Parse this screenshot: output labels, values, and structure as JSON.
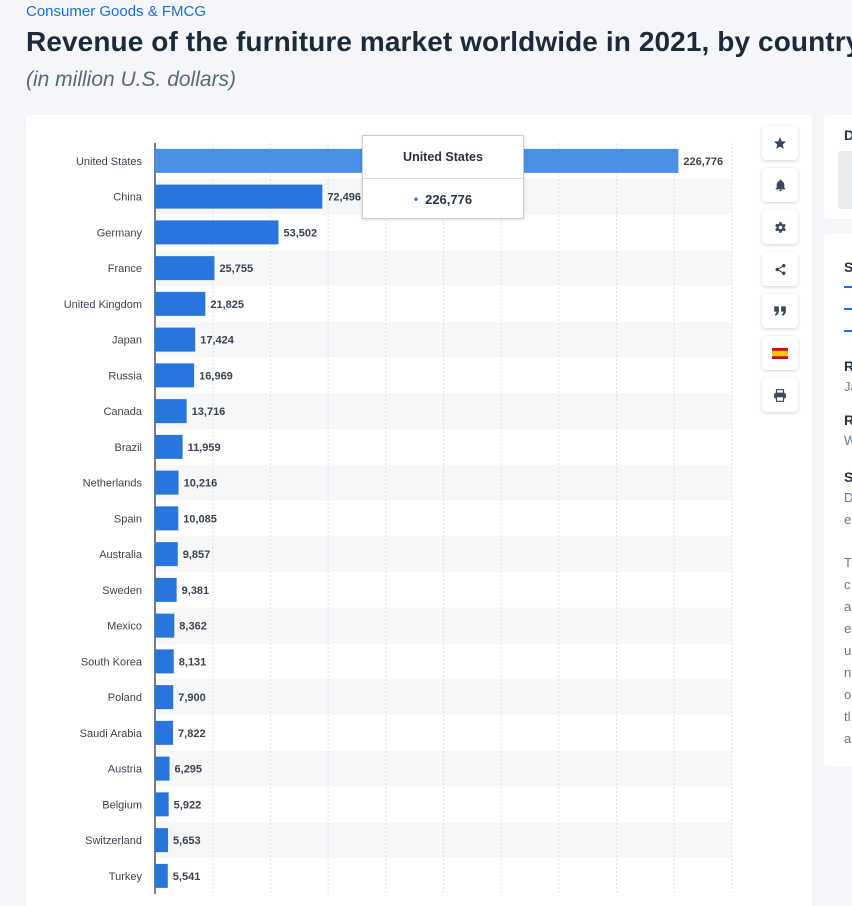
{
  "header": {
    "breadcrumb": "Consumer Goods & FMCG",
    "title": "Revenue of the furniture market worldwide in 2021, by country",
    "subtitle": "(in million U.S. dollars)"
  },
  "tooltip": {
    "country": "United States",
    "value": "226,776"
  },
  "toolbar": {
    "buttons": [
      {
        "name": "favorite-button",
        "icon": "star-icon"
      },
      {
        "name": "notification-button",
        "icon": "bell-icon"
      },
      {
        "name": "settings-button",
        "icon": "gear-icon"
      },
      {
        "name": "share-button",
        "icon": "share-icon"
      },
      {
        "name": "cite-button",
        "icon": "quote-icon"
      },
      {
        "name": "language-button",
        "icon": "spain-flag-icon"
      },
      {
        "name": "print-button",
        "icon": "printer-icon"
      }
    ]
  },
  "side_panel": {
    "card1_char": "D",
    "card2_chars": [
      "S",
      "R",
      "Ja",
      "R",
      "W",
      "S",
      "D",
      "e",
      "T",
      "c",
      "a",
      "e",
      "u",
      "n",
      "o",
      "tl",
      "a"
    ]
  },
  "colors": {
    "bar": "#2876dd",
    "bar_highlight": "#4a90e8",
    "stripe": "#f6f7f9",
    "grid": "#dde1e6",
    "axis": "#1c2a3a",
    "label": "#3a4450"
  },
  "chart_data": {
    "type": "bar",
    "orientation": "horizontal",
    "title": "Revenue of the furniture market worldwide in 2021, by country",
    "subtitle": "(in million U.S. dollars)",
    "categories": [
      "United States",
      "China",
      "Germany",
      "France",
      "United Kingdom",
      "Japan",
      "Russia",
      "Canada",
      "Brazil",
      "Netherlands",
      "Spain",
      "Australia",
      "Sweden",
      "Mexico",
      "South Korea",
      "Poland",
      "Saudi Arabia",
      "Austria",
      "Belgium",
      "Switzerland",
      "Turkey"
    ],
    "values": [
      226776,
      72496,
      53502,
      25755,
      21825,
      17424,
      16969,
      13716,
      11959,
      10216,
      10085,
      9857,
      9381,
      8362,
      8131,
      7900,
      7822,
      6295,
      5922,
      5653,
      5541
    ],
    "value_labels": [
      "226,776",
      "72,496",
      "53,502",
      "25,755",
      "21,825",
      "17,424",
      "16,969",
      "13,716",
      "11,959",
      "10,216",
      "10,085",
      "9,857",
      "9,381",
      "8,362",
      "8,131",
      "7,900",
      "7,822",
      "6,295",
      "5,922",
      "5,653",
      "5,541"
    ],
    "xlim": [
      0,
      250000
    ],
    "grid": true,
    "highlighted": "United States"
  }
}
